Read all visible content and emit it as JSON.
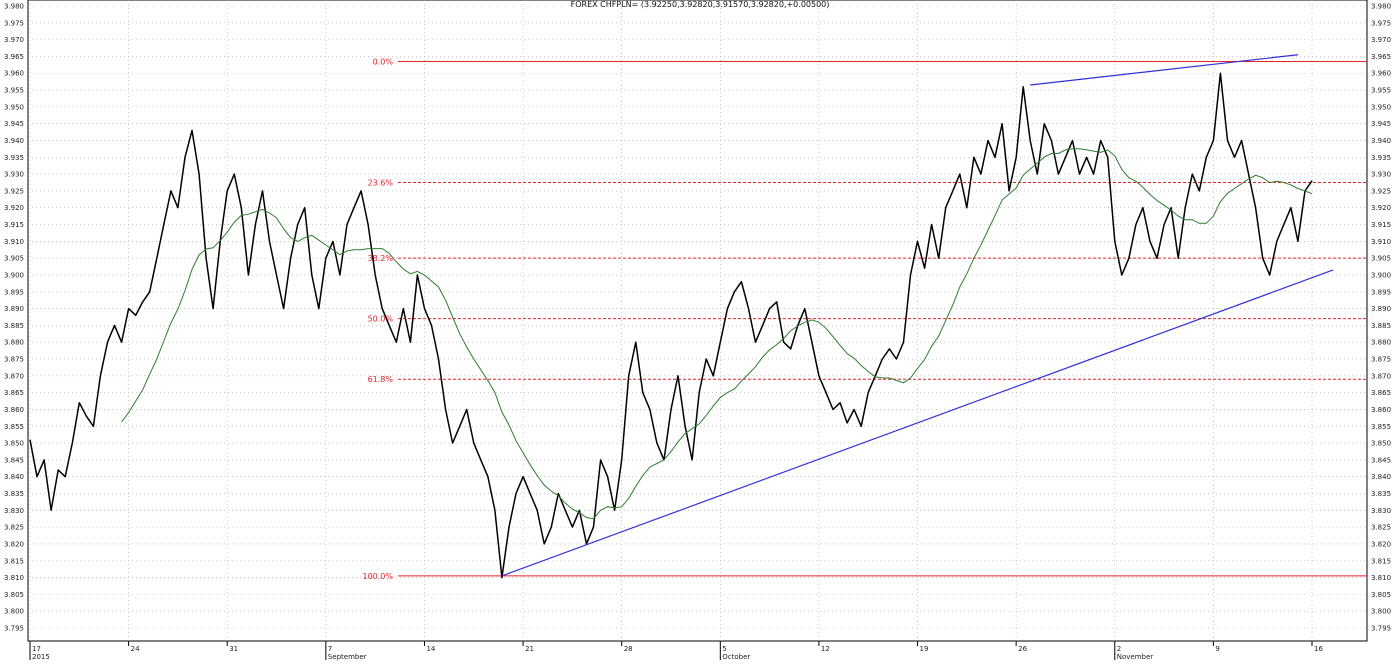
{
  "chart_data": {
    "type": "line",
    "title": "FOREX CHFPLN= (3.92250,3.92820,3.91570,3.92820,+0.00500)",
    "ylim": [
      3.795,
      3.98
    ],
    "y_ticks": [
      3.98,
      3.975,
      3.97,
      3.965,
      3.96,
      3.955,
      3.95,
      3.945,
      3.94,
      3.935,
      3.93,
      3.925,
      3.92,
      3.915,
      3.91,
      3.905,
      3.9,
      3.895,
      3.89,
      3.885,
      3.88,
      3.875,
      3.87,
      3.865,
      3.86,
      3.855,
      3.85,
      3.845,
      3.84,
      3.835,
      3.83,
      3.825,
      3.82,
      3.815,
      3.81,
      3.805,
      3.8,
      3.795
    ],
    "y_tick_labels": [
      "3.980",
      "3.975",
      "3.970",
      "3.965",
      "3.960",
      "3.955",
      "3.950",
      "3.945",
      "3.940",
      "3.935",
      "3.930",
      "3.925",
      "3.920",
      "3.915",
      "3.910",
      "3.905",
      "3.900",
      "3.895",
      "3.890",
      "3.885",
      "3.880",
      "3.875",
      "3.870",
      "3.865",
      "3.860",
      "3.855",
      "3.850",
      "3.845",
      "3.840",
      "3.835",
      "3.830",
      "3.825",
      "3.820",
      "3.815",
      "3.810",
      "3.805",
      "3.800",
      "3.795"
    ],
    "x_ticks": [
      "17",
      "24",
      "31",
      "7",
      "14",
      "21",
      "28",
      "5",
      "12",
      "19",
      "26",
      "2",
      "9",
      "16"
    ],
    "x_month_labels": [
      "2015",
      "September",
      "October",
      "November"
    ],
    "price_series": {
      "name": "",
      "values": [
        3.851,
        3.84,
        3.845,
        3.83,
        3.842,
        3.84,
        3.85,
        3.862,
        3.858,
        3.855,
        3.87,
        3.88,
        3.885,
        3.88,
        3.89,
        3.888,
        3.892,
        3.895,
        3.905,
        3.915,
        3.925,
        3.92,
        3.935,
        3.943,
        3.93,
        3.905,
        3.89,
        3.91,
        3.925,
        3.93,
        3.92,
        3.9,
        3.915,
        3.925,
        3.91,
        3.9,
        3.89,
        3.905,
        3.915,
        3.92,
        3.9,
        3.89,
        3.905,
        3.91,
        3.9,
        3.915,
        3.92,
        3.925,
        3.915,
        3.9,
        3.89,
        3.885,
        3.88,
        3.89,
        3.88,
        3.9,
        3.89,
        3.885,
        3.875,
        3.86,
        3.85,
        3.855,
        3.86,
        3.85,
        3.845,
        3.84,
        3.83,
        3.81,
        3.825,
        3.835,
        3.84,
        3.835,
        3.83,
        3.82,
        3.825,
        3.835,
        3.83,
        3.825,
        3.83,
        3.82,
        3.825,
        3.845,
        3.84,
        3.83,
        3.845,
        3.87,
        3.88,
        3.865,
        3.86,
        3.85,
        3.845,
        3.86,
        3.87,
        3.855,
        3.845,
        3.865,
        3.875,
        3.87,
        3.88,
        3.89,
        3.895,
        3.898,
        3.89,
        3.88,
        3.885,
        3.89,
        3.892,
        3.88,
        3.878,
        3.885,
        3.89,
        3.88,
        3.87,
        3.865,
        3.86,
        3.862,
        3.856,
        3.86,
        3.855,
        3.865,
        3.87,
        3.875,
        3.878,
        3.875,
        3.88,
        3.9,
        3.91,
        3.902,
        3.915,
        3.905,
        3.92,
        3.925,
        3.93,
        3.92,
        3.935,
        3.93,
        3.94,
        3.935,
        3.945,
        3.925,
        3.935,
        3.956,
        3.94,
        3.93,
        3.945,
        3.94,
        3.93,
        3.935,
        3.94,
        3.93,
        3.935,
        3.93,
        3.94,
        3.935,
        3.91,
        3.9,
        3.905,
        3.915,
        3.92,
        3.91,
        3.905,
        3.915,
        3.92,
        3.905,
        3.92,
        3.93,
        3.925,
        3.935,
        3.94,
        3.96,
        3.94,
        3.935,
        3.94,
        3.93,
        3.92,
        3.905,
        3.9,
        3.91,
        3.915,
        3.92,
        3.91,
        3.925,
        3.928
      ]
    },
    "moving_average": {
      "name": "",
      "color": "#2e7d2e"
    },
    "fibonacci_levels": [
      {
        "label": "0.0%",
        "value": 3.9635
      },
      {
        "label": "23.6%",
        "value": 3.9275
      },
      {
        "label": "38.2%",
        "value": 3.905
      },
      {
        "label": "50.0%",
        "value": 3.887
      },
      {
        "label": "61.8%",
        "value": 3.869
      },
      {
        "label": "100.0%",
        "value": 3.8105
      }
    ],
    "trendlines": [
      {
        "from_index": 67,
        "from_value": 3.8105,
        "to_index": 185,
        "to_value": 3.9015
      },
      {
        "from_index": 142,
        "from_value": 3.9565,
        "to_index": 180,
        "to_value": 3.9655
      }
    ],
    "colors": {
      "price": "#000000",
      "moving_average": "#2e7d2e",
      "fibonacci": "#e8202a",
      "trendline": "#3030dd",
      "grid": "#a8a8a8"
    },
    "grid": true
  }
}
